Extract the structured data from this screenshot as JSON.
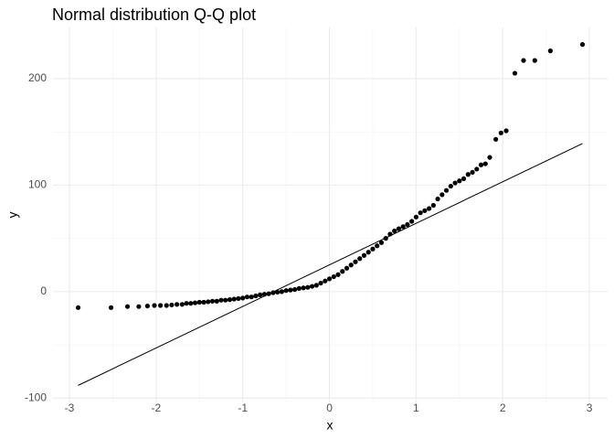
{
  "chart_data": {
    "type": "scatter",
    "title": "Normal distribution Q-Q plot",
    "xlabel": "x",
    "ylabel": "y",
    "xlim": [
      -3.19,
      3.21
    ],
    "ylim": [
      -104,
      248
    ],
    "xticks": [
      -3,
      -2,
      -1,
      0,
      1,
      2,
      3
    ],
    "yticks": [
      -100,
      0,
      100,
      200
    ],
    "xminor": [
      -2.5,
      -1.5,
      -0.5,
      0.5,
      1.5,
      2.5
    ],
    "yminor": [
      -50,
      50,
      150
    ],
    "grid": true,
    "color": "#000000",
    "x": [
      -2.9,
      -2.52,
      -2.33,
      -2.2,
      -2.1,
      -2.02,
      -1.95,
      -1.88,
      -1.82,
      -1.76,
      -1.7,
      -1.65,
      -1.6,
      -1.55,
      -1.5,
      -1.45,
      -1.4,
      -1.35,
      -1.3,
      -1.25,
      -1.2,
      -1.15,
      -1.1,
      -1.05,
      -1.0,
      -0.95,
      -0.9,
      -0.85,
      -0.8,
      -0.75,
      -0.7,
      -0.65,
      -0.6,
      -0.55,
      -0.5,
      -0.45,
      -0.4,
      -0.35,
      -0.3,
      -0.25,
      -0.2,
      -0.15,
      -0.1,
      -0.05,
      0,
      0.05,
      0.1,
      0.15,
      0.2,
      0.25,
      0.3,
      0.35,
      0.4,
      0.45,
      0.5,
      0.55,
      0.6,
      0.65,
      0.7,
      0.75,
      0.8,
      0.85,
      0.9,
      0.95,
      1.0,
      1.05,
      1.1,
      1.15,
      1.2,
      1.25,
      1.3,
      1.35,
      1.4,
      1.45,
      1.5,
      1.55,
      1.6,
      1.65,
      1.7,
      1.75,
      1.8,
      1.85,
      1.92,
      1.98,
      2.04,
      2.14,
      2.24,
      2.37,
      2.55,
      2.92
    ],
    "values": [
      -15,
      -15,
      -14,
      -14,
      -13.5,
      -13,
      -13,
      -13,
      -12.5,
      -12,
      -12,
      -11,
      -11,
      -10.5,
      -10,
      -10,
      -9.5,
      -9,
      -9,
      -8,
      -8,
      -7.5,
      -7,
      -6.5,
      -6,
      -5,
      -5,
      -4,
      -3,
      -2.5,
      -2,
      -1,
      -0.5,
      0,
      1,
      1.5,
      2,
      3,
      3.5,
      4,
      5,
      6,
      8,
      10,
      12,
      14,
      16,
      19,
      22,
      25,
      28,
      31,
      34,
      37,
      40,
      43,
      46,
      50,
      54,
      57,
      59,
      61,
      63,
      66,
      70,
      74,
      76,
      78,
      81,
      87,
      91,
      95,
      99,
      102,
      104,
      106,
      110,
      112,
      115,
      119,
      120,
      126,
      143,
      149,
      151,
      205,
      217,
      217,
      226,
      232
    ],
    "line": {
      "x": [
        -2.9,
        2.92
      ],
      "y": [
        -88,
        139
      ],
      "color": "#000000"
    }
  }
}
